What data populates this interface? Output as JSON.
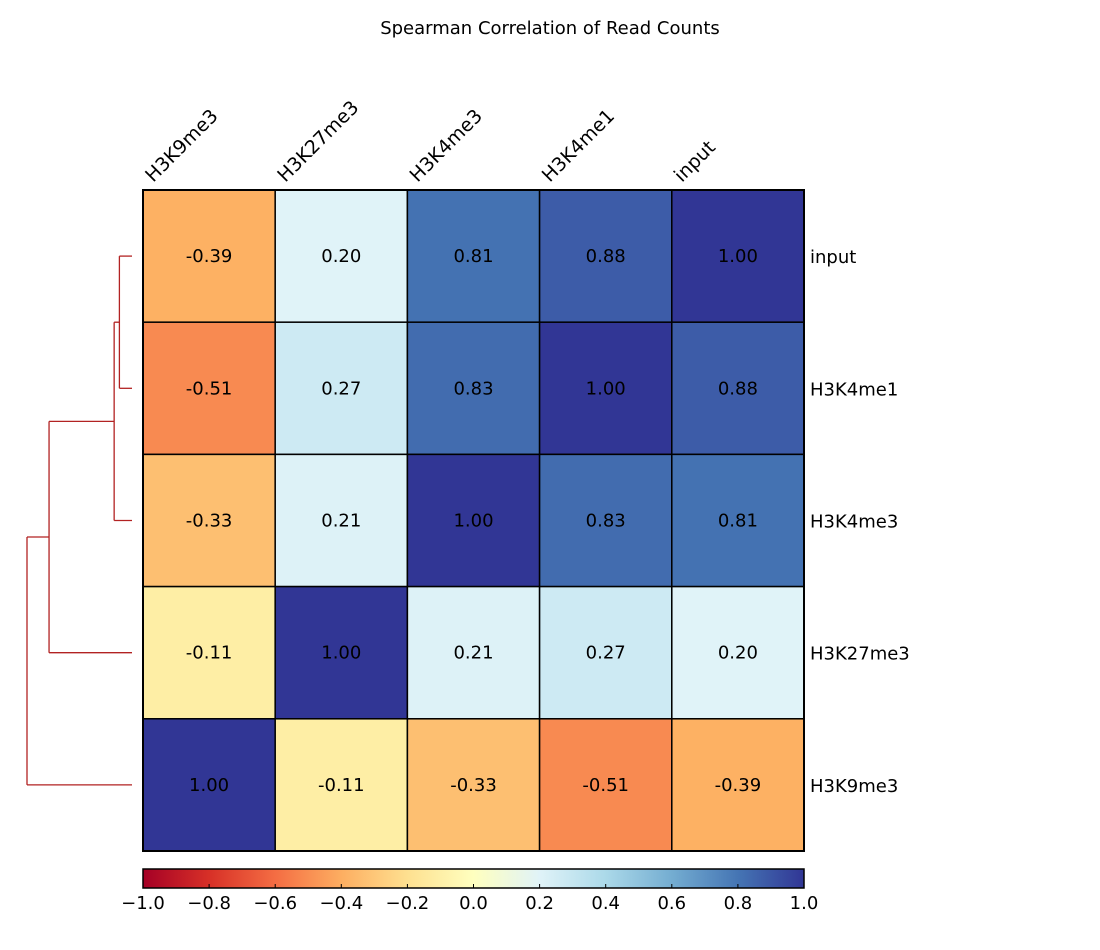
{
  "chart_data": {
    "type": "heatmap",
    "title": "Spearman Correlation of Read Counts",
    "columns": [
      "H3K9me3",
      "H3K27me3",
      "H3K4me3",
      "H3K4me1",
      "input"
    ],
    "rows": [
      "input",
      "H3K4me1",
      "H3K4me3",
      "H3K27me3",
      "H3K9me3"
    ],
    "values": [
      [
        -0.39,
        0.2,
        0.81,
        0.88,
        1.0
      ],
      [
        -0.51,
        0.27,
        0.83,
        1.0,
        0.88
      ],
      [
        -0.33,
        0.21,
        1.0,
        0.83,
        0.81
      ],
      [
        -0.11,
        1.0,
        0.21,
        0.27,
        0.2
      ],
      [
        1.0,
        -0.11,
        -0.33,
        -0.51,
        -0.39
      ]
    ],
    "value_labels": [
      [
        "-0.39",
        "0.20",
        "0.81",
        "0.88",
        "1.00"
      ],
      [
        "-0.51",
        "0.27",
        "0.83",
        "1.00",
        "0.88"
      ],
      [
        "-0.33",
        "0.21",
        "1.00",
        "0.83",
        "0.81"
      ],
      [
        "-0.11",
        "1.00",
        "0.21",
        "0.27",
        "0.20"
      ],
      [
        "1.00",
        "-0.11",
        "-0.33",
        "-0.51",
        "-0.39"
      ]
    ],
    "colorbar": {
      "range": [
        -1.0,
        1.0
      ],
      "ticks": [
        -1.0,
        -0.8,
        -0.6,
        -0.4,
        -0.2,
        0.0,
        0.2,
        0.4,
        0.6,
        0.8,
        1.0
      ],
      "tick_labels": [
        "−1.0",
        "−0.8",
        "−0.6",
        "−0.4",
        "−0.2",
        "0.0",
        "0.2",
        "0.4",
        "0.6",
        "0.8",
        "1.0"
      ],
      "colormap": "RdYlBu",
      "stops": [
        "#a50026",
        "#d73027",
        "#f46d43",
        "#fdae61",
        "#fee090",
        "#ffffbf",
        "#e0f3f8",
        "#abd9e9",
        "#74add1",
        "#4575b4",
        "#313695"
      ]
    },
    "dendrogram": {
      "placement": "left",
      "color": "#b22222",
      "merges": [
        {
          "members": [
            "input",
            "H3K4me1"
          ],
          "height": 0.12
        },
        {
          "members": [
            "input",
            "H3K4me1",
            "H3K4me3"
          ],
          "height": 0.17
        },
        {
          "members": [
            "input",
            "H3K4me1",
            "H3K4me3",
            "H3K27me3"
          ],
          "height": 0.79
        },
        {
          "members": [
            "input",
            "H3K4me1",
            "H3K4me3",
            "H3K27me3",
            "H3K9me3"
          ],
          "height": 1.0
        }
      ]
    }
  }
}
